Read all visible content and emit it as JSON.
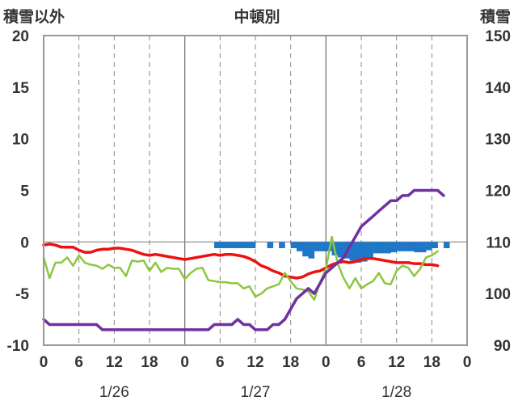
{
  "chart_data": {
    "type": "line",
    "title": "中頓別",
    "ylabel_left": "積雪以外",
    "ylabel_right": "積雪",
    "ylim_left": [
      -10,
      20
    ],
    "ylim_right": [
      90,
      150
    ],
    "yticks_left": [
      "20",
      "15",
      "10",
      "5",
      "0",
      "-5",
      "-10"
    ],
    "yticks_right": [
      "150",
      "140",
      "130",
      "120",
      "110",
      "100",
      "90"
    ],
    "x_hours": [
      0,
      72
    ],
    "xticks": [
      "0",
      "6",
      "12",
      "18",
      "0",
      "6",
      "12",
      "18",
      "0",
      "6",
      "12",
      "18",
      "0"
    ],
    "dates": [
      {
        "label": "1/26",
        "hour": 12
      },
      {
        "label": "1/27",
        "hour": 36
      },
      {
        "label": "1/28",
        "hour": 60
      }
    ],
    "grid": {
      "vertical_every_hours": 6,
      "solid_at_days": true,
      "dashed": true,
      "horizontal_zero": true
    },
    "colors": {
      "temperature": "#ee1111",
      "green_series": "#8dc63f",
      "snow_depth": "#7030a0",
      "bars": "#1f77c8",
      "axis": "#999999",
      "grid": "#888888"
    },
    "series": [
      {
        "color_key": "temperature",
        "axis": "left",
        "values": [
          [
            0,
            -0.3
          ],
          [
            1,
            -0.2
          ],
          [
            2,
            -0.3
          ],
          [
            3,
            -0.5
          ],
          [
            4,
            -0.5
          ],
          [
            5,
            -0.5
          ],
          [
            6,
            -0.8
          ],
          [
            7,
            -1.0
          ],
          [
            8,
            -1.0
          ],
          [
            9,
            -0.8
          ],
          [
            10,
            -0.7
          ],
          [
            11,
            -0.7
          ],
          [
            12,
            -0.6
          ],
          [
            13,
            -0.6
          ],
          [
            14,
            -0.7
          ],
          [
            15,
            -0.8
          ],
          [
            16,
            -1.0
          ],
          [
            17,
            -1.2
          ],
          [
            18,
            -1.3
          ],
          [
            19,
            -1.2
          ],
          [
            20,
            -1.3
          ],
          [
            21,
            -1.4
          ],
          [
            22,
            -1.5
          ],
          [
            23,
            -1.6
          ],
          [
            24,
            -1.7
          ],
          [
            25,
            -1.6
          ],
          [
            26,
            -1.5
          ],
          [
            27,
            -1.4
          ],
          [
            28,
            -1.3
          ],
          [
            29,
            -1.2
          ],
          [
            30,
            -1.3
          ],
          [
            31,
            -1.2
          ],
          [
            32,
            -1.2
          ],
          [
            33,
            -1.3
          ],
          [
            34,
            -1.4
          ],
          [
            35,
            -1.6
          ],
          [
            36,
            -1.9
          ],
          [
            37,
            -2.3
          ],
          [
            38,
            -2.5
          ],
          [
            39,
            -2.8
          ],
          [
            40,
            -3.0
          ],
          [
            41,
            -3.3
          ],
          [
            42,
            -3.4
          ],
          [
            43,
            -3.5
          ],
          [
            44,
            -3.4
          ],
          [
            45,
            -3.1
          ],
          [
            46,
            -2.9
          ],
          [
            47,
            -2.8
          ],
          [
            48,
            -2.5
          ],
          [
            49,
            -2.2
          ],
          [
            50,
            -2.0
          ],
          [
            51,
            -1.9
          ],
          [
            52,
            -2.0
          ],
          [
            53,
            -1.9
          ],
          [
            54,
            -1.7
          ],
          [
            55,
            -1.6
          ],
          [
            56,
            -1.6
          ],
          [
            57,
            -1.7
          ],
          [
            58,
            -1.8
          ],
          [
            59,
            -1.9
          ],
          [
            60,
            -2.0
          ],
          [
            61,
            -2.0
          ],
          [
            62,
            -2.0
          ],
          [
            63,
            -2.1
          ],
          [
            64,
            -2.1
          ],
          [
            65,
            -2.2
          ],
          [
            66,
            -2.2
          ],
          [
            67,
            -2.3
          ]
        ]
      },
      {
        "color_key": "green_series",
        "axis": "left",
        "values": [
          [
            0,
            -1.5
          ],
          [
            1,
            -3.5
          ],
          [
            2,
            -2.0
          ],
          [
            3,
            -2.0
          ],
          [
            4,
            -1.5
          ],
          [
            5,
            -2.3
          ],
          [
            6,
            -1.3
          ],
          [
            7,
            -2.0
          ],
          [
            8,
            -2.2
          ],
          [
            9,
            -2.3
          ],
          [
            10,
            -2.6
          ],
          [
            11,
            -2.2
          ],
          [
            12,
            -2.5
          ],
          [
            13,
            -2.5
          ],
          [
            14,
            -3.3
          ],
          [
            15,
            -1.8
          ],
          [
            16,
            -1.9
          ],
          [
            17,
            -1.8
          ],
          [
            18,
            -2.8
          ],
          [
            19,
            -2.0
          ],
          [
            20,
            -2.9
          ],
          [
            21,
            -2.5
          ],
          [
            22,
            -2.6
          ],
          [
            23,
            -2.6
          ],
          [
            24,
            -3.6
          ],
          [
            25,
            -3.0
          ],
          [
            26,
            -2.6
          ],
          [
            27,
            -2.5
          ],
          [
            28,
            -3.7
          ],
          [
            29,
            -3.8
          ],
          [
            30,
            -3.9
          ],
          [
            31,
            -3.9
          ],
          [
            32,
            -4.0
          ],
          [
            33,
            -4.0
          ],
          [
            34,
            -4.5
          ],
          [
            35,
            -4.3
          ],
          [
            36,
            -5.3
          ],
          [
            37,
            -5.0
          ],
          [
            38,
            -4.5
          ],
          [
            39,
            -4.3
          ],
          [
            40,
            -4.1
          ],
          [
            41,
            -3.0
          ],
          [
            42,
            -3.8
          ],
          [
            43,
            -4.5
          ],
          [
            44,
            -4.6
          ],
          [
            45,
            -4.8
          ],
          [
            46,
            -5.6
          ],
          [
            47,
            -3.9
          ],
          [
            48,
            -2.6
          ],
          [
            49,
            0.5
          ],
          [
            50,
            -2.1
          ],
          [
            51,
            -3.5
          ],
          [
            52,
            -4.5
          ],
          [
            53,
            -3.5
          ],
          [
            54,
            -4.5
          ],
          [
            55,
            -4.1
          ],
          [
            56,
            -3.8
          ],
          [
            57,
            -3.0
          ],
          [
            58,
            -4.0
          ],
          [
            59,
            -4.1
          ],
          [
            60,
            -2.8
          ],
          [
            61,
            -2.3
          ],
          [
            62,
            -2.5
          ],
          [
            63,
            -3.3
          ],
          [
            64,
            -2.6
          ],
          [
            65,
            -1.5
          ],
          [
            66,
            -1.3
          ],
          [
            67,
            -0.9
          ]
        ]
      },
      {
        "color_key": "snow_depth",
        "axis": "right",
        "values": [
          [
            0,
            95
          ],
          [
            1,
            94
          ],
          [
            2,
            94
          ],
          [
            3,
            94
          ],
          [
            4,
            94
          ],
          [
            5,
            94
          ],
          [
            6,
            94
          ],
          [
            7,
            94
          ],
          [
            8,
            94
          ],
          [
            9,
            94
          ],
          [
            10,
            93
          ],
          [
            11,
            93
          ],
          [
            12,
            93
          ],
          [
            13,
            93
          ],
          [
            14,
            93
          ],
          [
            15,
            93
          ],
          [
            16,
            93
          ],
          [
            17,
            93
          ],
          [
            18,
            93
          ],
          [
            19,
            93
          ],
          [
            20,
            93
          ],
          [
            21,
            93
          ],
          [
            22,
            93
          ],
          [
            23,
            93
          ],
          [
            24,
            93
          ],
          [
            25,
            93
          ],
          [
            26,
            93
          ],
          [
            27,
            93
          ],
          [
            28,
            93
          ],
          [
            29,
            94
          ],
          [
            30,
            94
          ],
          [
            31,
            94
          ],
          [
            32,
            94
          ],
          [
            33,
            95
          ],
          [
            34,
            94
          ],
          [
            35,
            94
          ],
          [
            36,
            93
          ],
          [
            37,
            93
          ],
          [
            38,
            93
          ],
          [
            39,
            94
          ],
          [
            40,
            94
          ],
          [
            41,
            95
          ],
          [
            42,
            97
          ],
          [
            43,
            99
          ],
          [
            44,
            100
          ],
          [
            45,
            101
          ],
          [
            46,
            100
          ],
          [
            47,
            102
          ],
          [
            48,
            104
          ],
          [
            49,
            105
          ],
          [
            50,
            106
          ],
          [
            51,
            107
          ],
          [
            52,
            109
          ],
          [
            53,
            111
          ],
          [
            54,
            113
          ],
          [
            55,
            114
          ],
          [
            56,
            115
          ],
          [
            57,
            116
          ],
          [
            58,
            117
          ],
          [
            59,
            118
          ],
          [
            60,
            118
          ],
          [
            61,
            119
          ],
          [
            62,
            119
          ],
          [
            63,
            120
          ],
          [
            64,
            120
          ],
          [
            65,
            120
          ],
          [
            66,
            120
          ],
          [
            67,
            120
          ],
          [
            68,
            119
          ]
        ]
      }
    ],
    "bars_axis": "left",
    "bars": [
      [
        29.5,
        -0.6
      ],
      [
        30.5,
        -0.6
      ],
      [
        31.5,
        -0.6
      ],
      [
        32.5,
        -0.6
      ],
      [
        33.5,
        -0.6
      ],
      [
        34.5,
        -0.6
      ],
      [
        35.5,
        -0.6
      ],
      [
        38.5,
        -0.6
      ],
      [
        40.5,
        -0.6
      ],
      [
        42.5,
        -0.6
      ],
      [
        43.5,
        -0.9
      ],
      [
        44.5,
        -1.4
      ],
      [
        45.5,
        -1.6
      ],
      [
        46.5,
        -0.9
      ],
      [
        47.5,
        -0.9
      ],
      [
        48.5,
        -0.9
      ],
      [
        49.5,
        -1.3
      ],
      [
        50.5,
        -1.5
      ],
      [
        51.5,
        -1.6
      ],
      [
        52.5,
        -1.8
      ],
      [
        53.5,
        -2.0
      ],
      [
        54.5,
        -1.9
      ],
      [
        55.5,
        -1.7
      ],
      [
        56.5,
        -1.1
      ],
      [
        57.5,
        -1.1
      ],
      [
        58.5,
        -1.1
      ],
      [
        59.5,
        -1.0
      ],
      [
        60.5,
        -0.9
      ],
      [
        61.5,
        -0.9
      ],
      [
        62.5,
        -0.9
      ],
      [
        63.5,
        -1.0
      ],
      [
        64.5,
        -1.0
      ],
      [
        65.5,
        -0.8
      ],
      [
        66.5,
        -0.6
      ],
      [
        68.5,
        -0.6
      ]
    ]
  }
}
